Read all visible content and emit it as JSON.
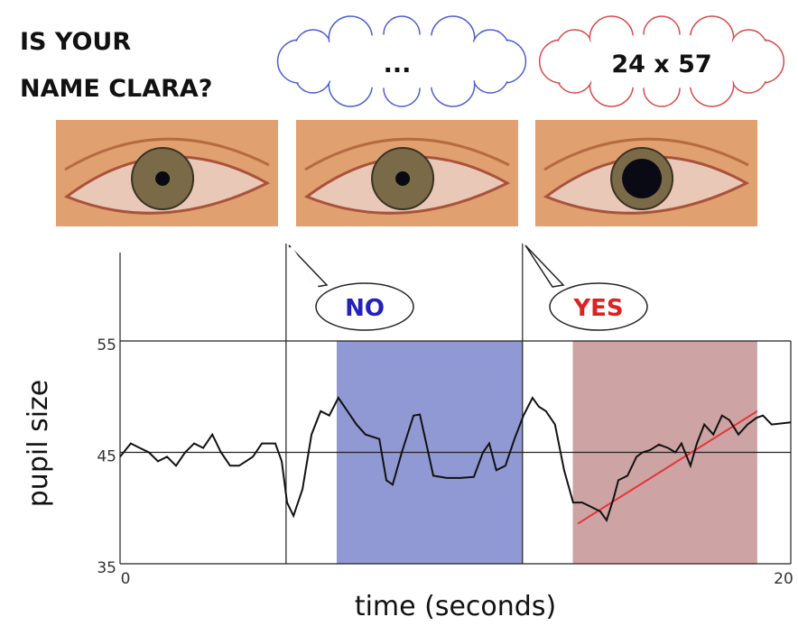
{
  "question": [
    "IS YOUR",
    "NAME CLARA?"
  ],
  "thoughts": [
    "...",
    "24 x 57"
  ],
  "answers": [
    "NO",
    "YES"
  ],
  "chart_data": {
    "type": "line",
    "xlabel": "time (seconds)",
    "ylabel": "pupil size",
    "xlim": [
      0,
      20
    ],
    "ylim": [
      35,
      55
    ],
    "xticks": [
      0,
      20
    ],
    "yticks": [
      35,
      45,
      55
    ],
    "grid": true,
    "x": [
      0,
      0.32,
      0.59,
      0.86,
      1.13,
      1.4,
      1.67,
      1.94,
      2.21,
      2.48,
      2.75,
      3.01,
      3.28,
      3.55,
      3.96,
      4.23,
      4.63,
      4.82,
      4.98,
      5.17,
      5.44,
      5.71,
      5.98,
      6.24,
      6.51,
      6.78,
      7.05,
      7.32,
      7.73,
      7.94,
      8.13,
      8.4,
      8.75,
      8.94,
      9.13,
      9.34,
      9.74,
      10.15,
      10.55,
      10.82,
      11.01,
      11.22,
      11.49,
      11.76,
      12.03,
      12.3,
      12.49,
      12.7,
      12.97,
      13.24,
      13.51,
      13.78,
      14.05,
      14.32,
      14.51,
      14.72,
      14.86,
      15.13,
      15.4,
      15.58,
      15.8,
      16.07,
      16.34,
      16.56,
      16.74,
      17.01,
      17.2,
      17.42,
      17.69,
      17.95,
      18.17,
      18.44,
      18.71,
      18.98,
      19.17,
      19.43,
      20
    ],
    "series": [
      {
        "color": "#111111",
        "values": [
          44.6,
          45.8,
          45.4,
          45.0,
          44.2,
          44.6,
          43.8,
          45.0,
          45.8,
          45.4,
          46.6,
          45.0,
          43.8,
          43.8,
          44.6,
          45.8,
          45.8,
          44.2,
          40.5,
          39.3,
          41.7,
          46.6,
          48.7,
          48.3,
          49.9,
          48.7,
          47.5,
          46.6,
          46.2,
          42.5,
          42.1,
          45.0,
          48.3,
          48.4,
          45.8,
          42.9,
          42.7,
          42.7,
          42.8,
          45.0,
          45.8,
          43.4,
          43.8,
          46.2,
          48.3,
          49.9,
          49.1,
          48.7,
          47.5,
          43.4,
          40.5,
          40.5,
          40.1,
          39.7,
          38.9,
          40.9,
          42.5,
          42.9,
          44.6,
          45.0,
          45.2,
          45.7,
          45.4,
          45.0,
          45.8,
          43.8,
          45.8,
          47.5,
          46.6,
          48.3,
          47.9,
          46.6,
          47.5,
          48.1,
          48.3,
          47.5,
          47.7
        ]
      }
    ],
    "spans": [
      {
        "start": 6.46,
        "end": 12.0,
        "color": "#7d87cb"
      },
      {
        "start": 13.5,
        "end": 19.0,
        "color": "#c49393"
      }
    ],
    "vlines": [
      4.95,
      12.0
    ],
    "trend": {
      "x": [
        13.65,
        19.0
      ],
      "y": [
        38.6,
        48.7
      ],
      "color": "#e8333a"
    }
  }
}
